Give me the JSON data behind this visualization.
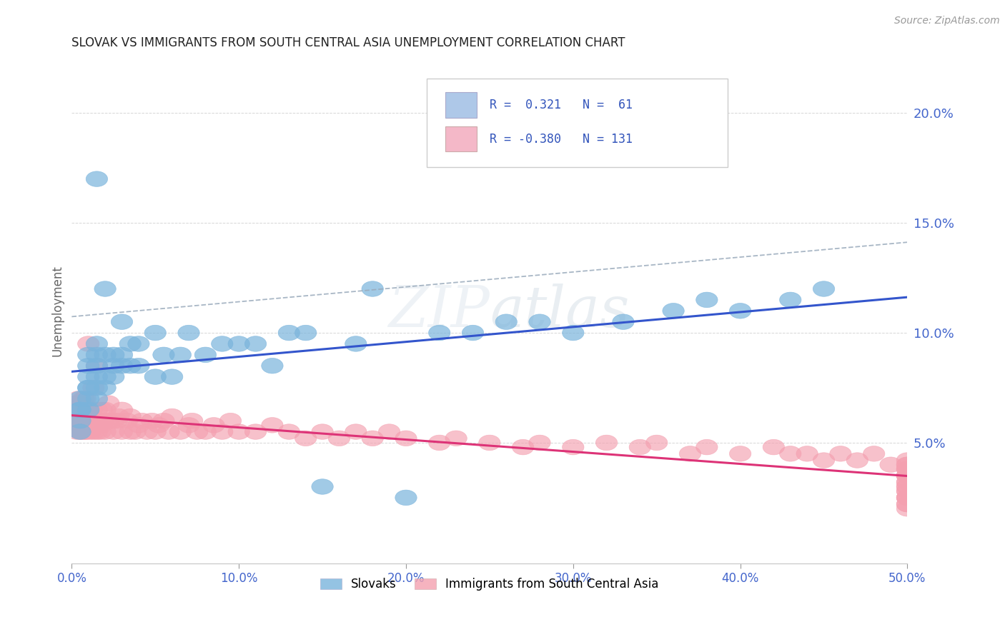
{
  "title": "SLOVAK VS IMMIGRANTS FROM SOUTH CENTRAL ASIA UNEMPLOYMENT CORRELATION CHART",
  "source_text": "Source: ZipAtlas.com",
  "ylabel": "Unemployment",
  "xlim": [
    0.0,
    0.5
  ],
  "ylim": [
    -0.005,
    0.225
  ],
  "plot_ylim": [
    0.0,
    0.22
  ],
  "yticks": [
    0.05,
    0.1,
    0.15,
    0.2
  ],
  "ytick_labels": [
    "5.0%",
    "10.0%",
    "15.0%",
    "20.0%"
  ],
  "xticks": [
    0.0,
    0.1,
    0.2,
    0.3,
    0.4,
    0.5
  ],
  "xtick_labels": [
    "0.0%",
    "10.0%",
    "20.0%",
    "30.0%",
    "40.0%",
    "50.0%"
  ],
  "series1_label": "Slovaks",
  "series1_R": "0.321",
  "series1_N": "61",
  "series1_color": "#7ab4dc",
  "series2_label": "Immigrants from South Central Asia",
  "series2_R": "-0.380",
  "series2_N": "131",
  "series2_color": "#f4a0b0",
  "trend1_color": "#3355cc",
  "trend2_color": "#dd3377",
  "conf_color": "#99aabb",
  "background_color": "#ffffff",
  "title_color": "#222222",
  "axis_label_color": "#666666",
  "tick_color": "#4466cc",
  "grid_color": "#cccccc",
  "legend_box_color1": "#aec8e8",
  "legend_box_color2": "#f4b8c8",
  "slovaks_x": [
    0.005,
    0.005,
    0.005,
    0.005,
    0.005,
    0.01,
    0.01,
    0.01,
    0.01,
    0.01,
    0.01,
    0.01,
    0.015,
    0.015,
    0.015,
    0.015,
    0.015,
    0.015,
    0.015,
    0.02,
    0.02,
    0.02,
    0.02,
    0.025,
    0.025,
    0.025,
    0.03,
    0.03,
    0.03,
    0.035,
    0.035,
    0.04,
    0.04,
    0.05,
    0.05,
    0.055,
    0.06,
    0.065,
    0.07,
    0.08,
    0.09,
    0.1,
    0.11,
    0.12,
    0.13,
    0.14,
    0.15,
    0.17,
    0.18,
    0.2,
    0.22,
    0.24,
    0.26,
    0.28,
    0.3,
    0.33,
    0.36,
    0.38,
    0.4,
    0.43,
    0.45
  ],
  "slovaks_y": [
    0.06,
    0.065,
    0.065,
    0.07,
    0.055,
    0.065,
    0.07,
    0.075,
    0.075,
    0.08,
    0.085,
    0.09,
    0.07,
    0.075,
    0.08,
    0.085,
    0.09,
    0.095,
    0.17,
    0.075,
    0.08,
    0.09,
    0.12,
    0.08,
    0.085,
    0.09,
    0.085,
    0.09,
    0.105,
    0.085,
    0.095,
    0.085,
    0.095,
    0.08,
    0.1,
    0.09,
    0.08,
    0.09,
    0.1,
    0.09,
    0.095,
    0.095,
    0.095,
    0.085,
    0.1,
    0.1,
    0.03,
    0.095,
    0.12,
    0.025,
    0.1,
    0.1,
    0.105,
    0.105,
    0.1,
    0.105,
    0.11,
    0.115,
    0.11,
    0.115,
    0.12
  ],
  "immigrants_x": [
    0.002,
    0.002,
    0.003,
    0.003,
    0.003,
    0.003,
    0.004,
    0.004,
    0.004,
    0.004,
    0.005,
    0.005,
    0.005,
    0.005,
    0.006,
    0.006,
    0.006,
    0.007,
    0.007,
    0.007,
    0.007,
    0.008,
    0.008,
    0.008,
    0.008,
    0.009,
    0.009,
    0.01,
    0.01,
    0.01,
    0.01,
    0.01,
    0.011,
    0.012,
    0.012,
    0.013,
    0.013,
    0.014,
    0.015,
    0.015,
    0.015,
    0.015,
    0.016,
    0.016,
    0.017,
    0.018,
    0.018,
    0.019,
    0.02,
    0.02,
    0.022,
    0.022,
    0.025,
    0.025,
    0.027,
    0.028,
    0.03,
    0.03,
    0.033,
    0.035,
    0.035,
    0.038,
    0.04,
    0.042,
    0.045,
    0.048,
    0.05,
    0.052,
    0.055,
    0.058,
    0.06,
    0.065,
    0.07,
    0.072,
    0.075,
    0.08,
    0.085,
    0.09,
    0.095,
    0.1,
    0.11,
    0.12,
    0.13,
    0.14,
    0.15,
    0.16,
    0.17,
    0.18,
    0.19,
    0.2,
    0.22,
    0.23,
    0.25,
    0.27,
    0.28,
    0.3,
    0.32,
    0.34,
    0.35,
    0.37,
    0.38,
    0.4,
    0.42,
    0.43,
    0.44,
    0.45,
    0.46,
    0.47,
    0.48,
    0.49,
    0.5,
    0.5,
    0.5,
    0.5,
    0.5,
    0.5,
    0.5,
    0.5,
    0.5,
    0.5,
    0.5,
    0.5,
    0.5,
    0.5,
    0.5,
    0.5,
    0.5,
    0.5,
    0.5,
    0.5,
    0.5
  ],
  "immigrants_y": [
    0.06,
    0.065,
    0.055,
    0.062,
    0.068,
    0.06,
    0.058,
    0.065,
    0.07,
    0.06,
    0.062,
    0.058,
    0.065,
    0.055,
    0.062,
    0.068,
    0.055,
    0.065,
    0.06,
    0.055,
    0.07,
    0.06,
    0.055,
    0.065,
    0.07,
    0.06,
    0.055,
    0.062,
    0.06,
    0.065,
    0.058,
    0.095,
    0.055,
    0.065,
    0.06,
    0.055,
    0.075,
    0.06,
    0.058,
    0.065,
    0.055,
    0.085,
    0.058,
    0.06,
    0.055,
    0.065,
    0.058,
    0.06,
    0.055,
    0.065,
    0.06,
    0.068,
    0.06,
    0.055,
    0.06,
    0.062,
    0.055,
    0.065,
    0.06,
    0.055,
    0.062,
    0.055,
    0.058,
    0.06,
    0.055,
    0.06,
    0.055,
    0.058,
    0.06,
    0.055,
    0.062,
    0.055,
    0.058,
    0.06,
    0.055,
    0.055,
    0.058,
    0.055,
    0.06,
    0.055,
    0.055,
    0.058,
    0.055,
    0.052,
    0.055,
    0.052,
    0.055,
    0.052,
    0.055,
    0.052,
    0.05,
    0.052,
    0.05,
    0.048,
    0.05,
    0.048,
    0.05,
    0.048,
    0.05,
    0.045,
    0.048,
    0.045,
    0.048,
    0.045,
    0.045,
    0.042,
    0.045,
    0.042,
    0.045,
    0.04,
    0.042,
    0.038,
    0.04,
    0.038,
    0.04,
    0.035,
    0.038,
    0.035,
    0.032,
    0.035,
    0.03,
    0.032,
    0.028,
    0.03,
    0.025,
    0.028,
    0.025,
    0.022,
    0.025,
    0.02,
    0.022
  ]
}
